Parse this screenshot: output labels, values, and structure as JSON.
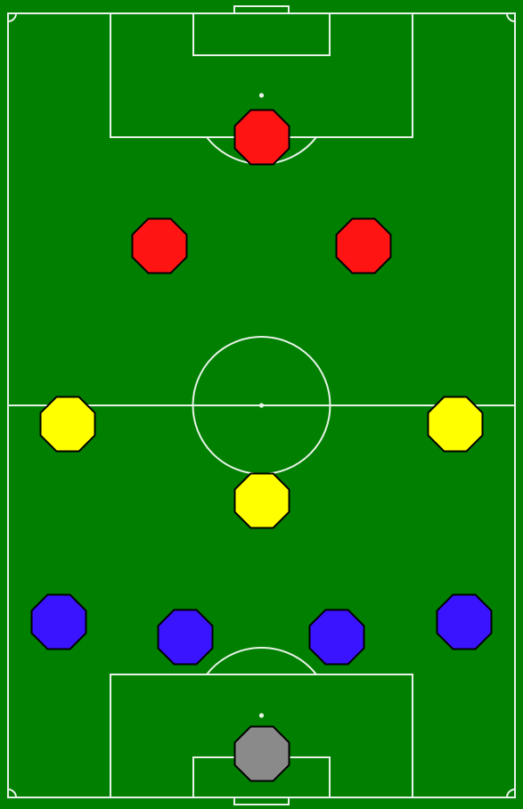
{
  "pitch": {
    "grass_color": "#007f00",
    "line_color": "#e8f3e8"
  },
  "teams": {
    "red": "#ff1414",
    "yellow": "#ffff00",
    "blue": "#3a14ff",
    "goalkeeper": "#8a8a8a"
  },
  "players": [
    {
      "id": "forward-top-center",
      "team": "red"
    },
    {
      "id": "forward-left",
      "team": "red"
    },
    {
      "id": "forward-right",
      "team": "red"
    },
    {
      "id": "midfielder-left",
      "team": "yellow"
    },
    {
      "id": "midfielder-right",
      "team": "yellow"
    },
    {
      "id": "midfielder-center",
      "team": "yellow"
    },
    {
      "id": "defender-far-left",
      "team": "blue"
    },
    {
      "id": "defender-left",
      "team": "blue"
    },
    {
      "id": "defender-right",
      "team": "blue"
    },
    {
      "id": "defender-far-right",
      "team": "blue"
    },
    {
      "id": "goalkeeper",
      "team": "goalkeeper"
    }
  ]
}
